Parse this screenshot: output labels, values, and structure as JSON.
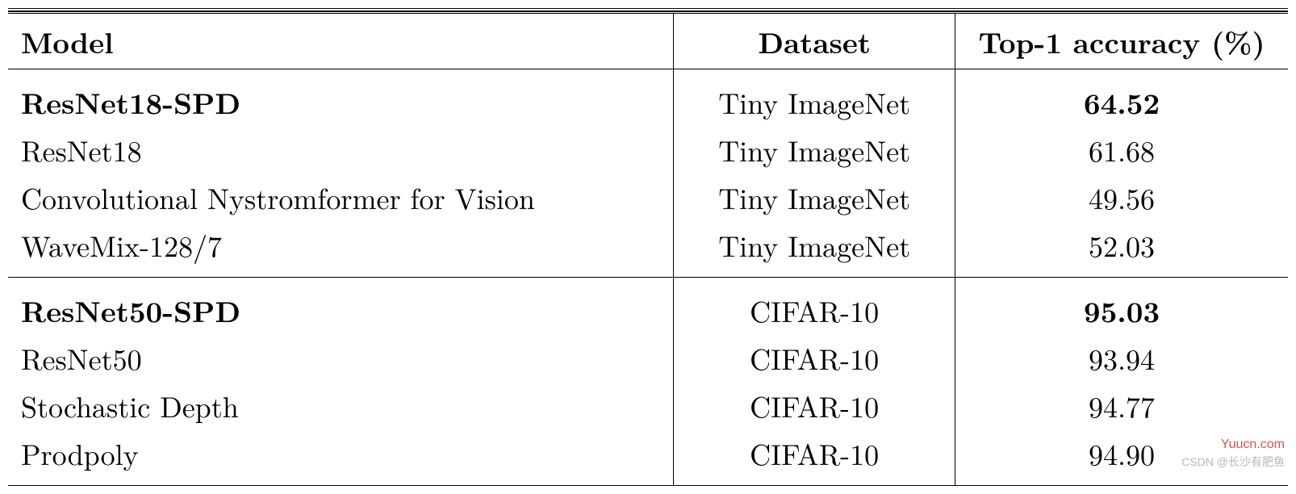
{
  "table": {
    "headers": {
      "model": "Model",
      "dataset": "Dataset",
      "accuracy": "Top-1 accuracy (%)"
    },
    "groups": [
      {
        "rows": [
          {
            "model": "ResNet18-SPD",
            "dataset": "Tiny ImageNet",
            "accuracy": "64.52",
            "bold": true
          },
          {
            "model": "ResNet18",
            "dataset": "Tiny ImageNet",
            "accuracy": "61.68",
            "bold": false
          },
          {
            "model": "Convolutional Nystromformer for Vision",
            "dataset": "Tiny ImageNet",
            "accuracy": "49.56",
            "bold": false
          },
          {
            "model": "WaveMix-128/7",
            "dataset": "Tiny ImageNet",
            "accuracy": "52.03",
            "bold": false
          }
        ]
      },
      {
        "rows": [
          {
            "model": "ResNet50-SPD",
            "dataset": "CIFAR-10",
            "accuracy": "95.03",
            "bold": true
          },
          {
            "model": "ResNet50",
            "dataset": "CIFAR-10",
            "accuracy": "93.94",
            "bold": false
          },
          {
            "model": "Stochastic Depth",
            "dataset": "CIFAR-10",
            "accuracy": "94.77",
            "bold": false
          },
          {
            "model": "Prodpoly",
            "dataset": "CIFAR-10",
            "accuracy": "94.90",
            "bold": false
          }
        ]
      }
    ],
    "column_widths": [
      "52%",
      "22%",
      "26%"
    ],
    "font_size": 36,
    "text_color": "#000000",
    "background_color": "#ffffff",
    "rule_color": "#000000"
  },
  "watermarks": {
    "red": {
      "text": "Yuucn.com",
      "color": "#d94c3d",
      "fontsize": 16
    },
    "gray": {
      "text": "CSDN @长沙有肥鱼",
      "color": "#b0b0b0",
      "fontsize": 14
    }
  }
}
